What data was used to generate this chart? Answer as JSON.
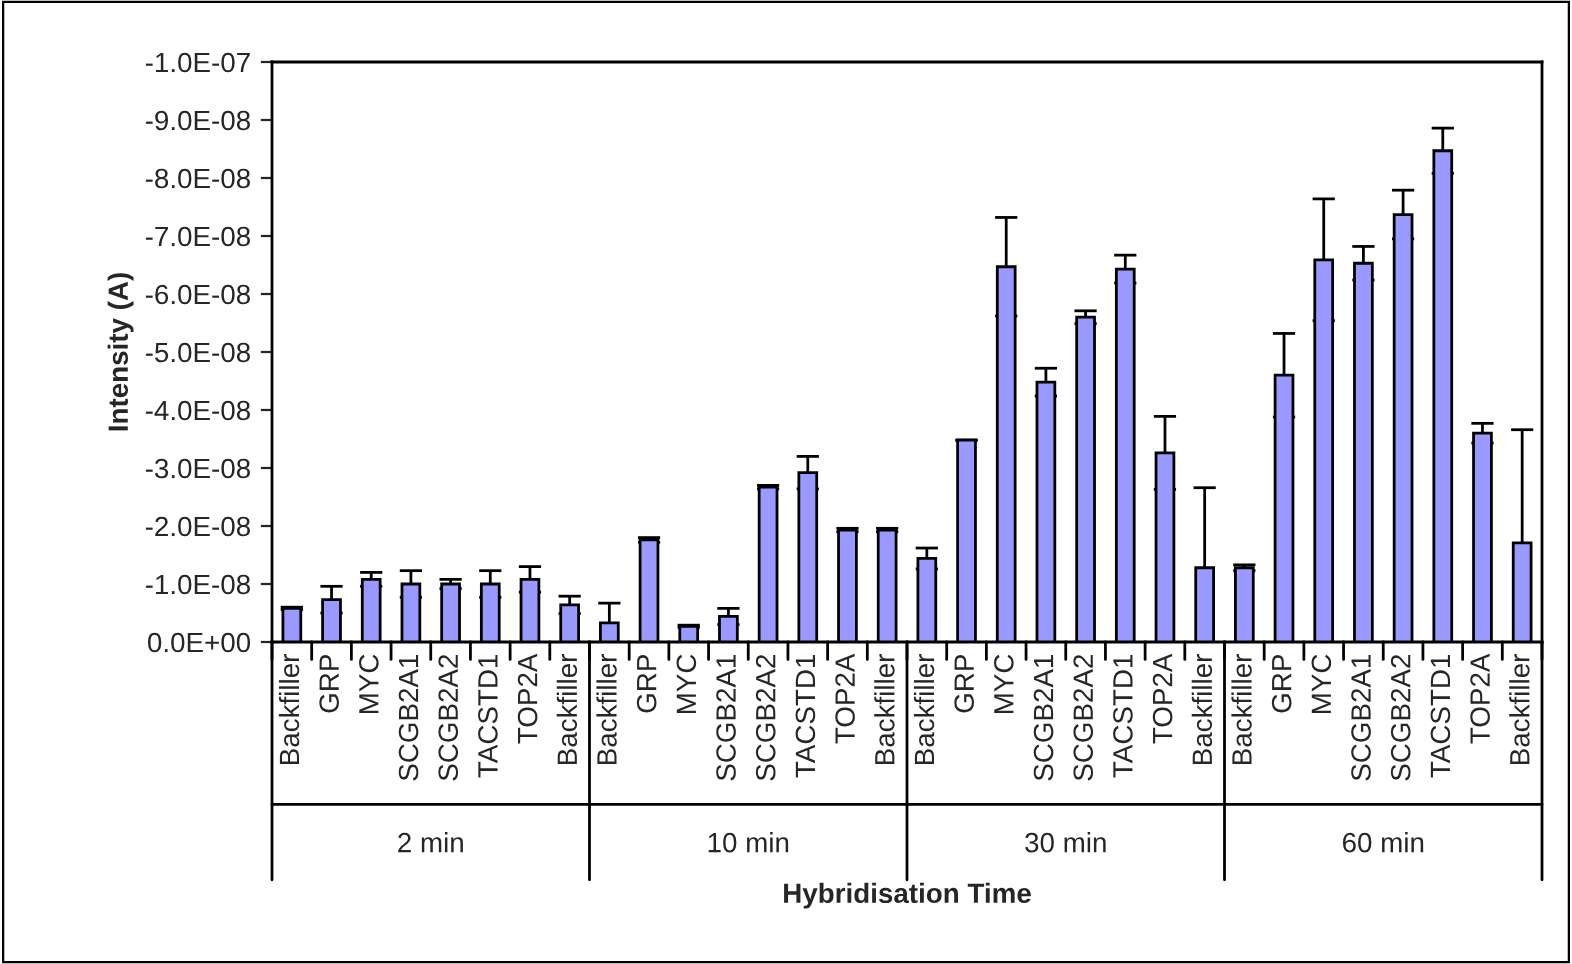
{
  "chart_data": {
    "type": "bar",
    "xlabel": "Hybridisation Time",
    "ylabel": "Intensity (A)",
    "categories": [
      "Backfiller",
      "GRP",
      "MYC",
      "SCGB2A1",
      "SCGB2A2",
      "TACSTD1",
      "TOP2A",
      "Backfiller",
      "Backfiller",
      "GRP",
      "MYC",
      "SCGB2A1",
      "SCGB2A2",
      "TACSTD1",
      "TOP2A",
      "Backfiller",
      "Backfiller",
      "GRP",
      "MYC",
      "SCGB2A1",
      "SCGB2A2",
      "TACSTD1",
      "TOP2A",
      "Backfiller",
      "Backfiller",
      "GRP",
      "MYC",
      "SCGB2A1",
      "SCGB2A2",
      "TACSTD1",
      "TOP2A",
      "Backfiller"
    ],
    "annotations": [
      "2 min",
      "10 min",
      "30 min",
      "60 min"
    ],
    "series": [
      {
        "color": "#9999ff",
        "values": [
          -5.8e-09,
          -7.3e-09,
          -1.08e-08,
          -1e-08,
          -1e-08,
          -1e-08,
          -1.08e-08,
          -6.4e-09,
          -3.3e-09,
          -1.76e-08,
          -2.7e-09,
          -4.4e-09,
          -2.67e-08,
          -2.92e-08,
          -1.93e-08,
          -1.93e-08,
          -1.44e-08,
          -3.48e-08,
          -6.47e-08,
          -4.48e-08,
          -5.6e-08,
          -6.43e-08,
          -3.26e-08,
          -1.28e-08,
          -1.28e-08,
          -4.6e-08,
          -6.59e-08,
          -6.53e-08,
          -7.37e-08,
          -8.47e-08,
          -3.6e-08,
          -1.71e-08
        ],
        "errors": [
          2e-10,
          2.3e-09,
          1.2e-09,
          2.3e-09,
          8e-10,
          2.3e-09,
          2.2e-09,
          1.5e-09,
          3.4e-09,
          4e-10,
          2e-10,
          1.4e-09,
          3e-10,
          2.8e-09,
          3e-10,
          3e-10,
          1.8e-09,
          0,
          8.5e-09,
          2.4e-09,
          1.1e-09,
          2.4e-09,
          6.3e-09,
          1.38e-08,
          5e-10,
          7.2e-09,
          1.05e-08,
          2.9e-09,
          4.2e-09,
          3.9e-09,
          1.7e-09,
          1.95e-08
        ]
      }
    ],
    "ylim": [
      0,
      -1e-07
    ],
    "yticks": [
      {
        "value": 0,
        "label": "0.0E+00"
      },
      {
        "value": -1e-08,
        "label": "-1.0E-08"
      },
      {
        "value": -2e-08,
        "label": "-2.0E-08"
      },
      {
        "value": -3e-08,
        "label": "-3.0E-08"
      },
      {
        "value": -4e-08,
        "label": "-4.0E-08"
      },
      {
        "value": -5e-08,
        "label": "-5.0E-08"
      },
      {
        "value": -6e-08,
        "label": "-6.0E-08"
      },
      {
        "value": -7e-08,
        "label": "-7.0E-08"
      },
      {
        "value": -8e-08,
        "label": "-8.0E-08"
      },
      {
        "value": -9e-08,
        "label": "-9.0E-08"
      },
      {
        "value": -1e-07,
        "label": "-1.0E-07"
      }
    ],
    "grid": false,
    "legend": false
  }
}
